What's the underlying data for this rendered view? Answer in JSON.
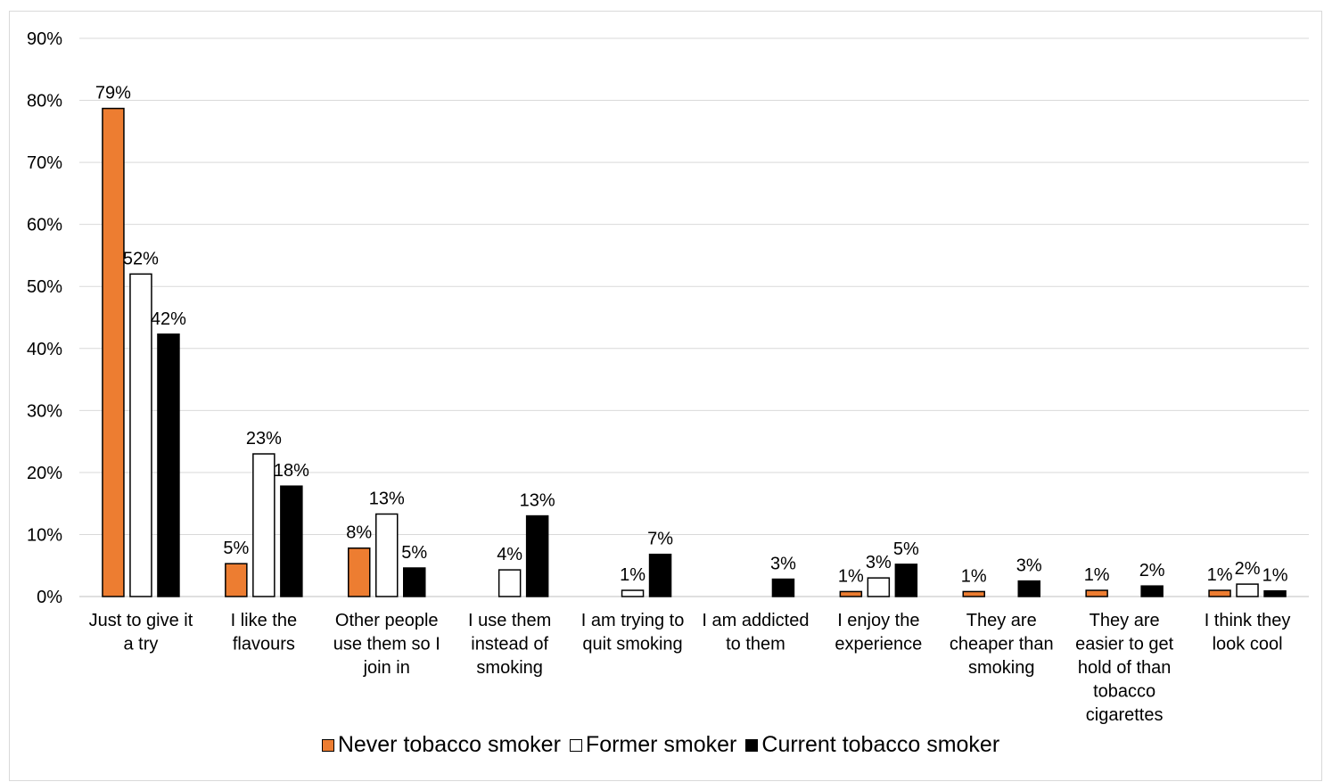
{
  "chart_data": {
    "type": "bar",
    "categories": [
      [
        "Just to give it",
        "a try"
      ],
      [
        "I like the",
        "flavours"
      ],
      [
        "Other people",
        "use them so I",
        "join in"
      ],
      [
        "I use them",
        "instead of",
        "smoking"
      ],
      [
        "I am trying to",
        "quit smoking"
      ],
      [
        "I am addicted",
        "to them"
      ],
      [
        "I enjoy the",
        "experience"
      ],
      [
        "They are",
        "cheaper than",
        "smoking"
      ],
      [
        "They are",
        "easier to get",
        "hold of than",
        "tobacco",
        "cigarettes"
      ],
      [
        "I think they",
        "look cool"
      ]
    ],
    "series": [
      {
        "name": "Never tobacco smoker",
        "color": "#ED7D31",
        "values": [
          78.7,
          5.3,
          7.8,
          0,
          0,
          0,
          0.8,
          0.8,
          1.0,
          1.0
        ],
        "labels": [
          "79%",
          "5%",
          "8%",
          "",
          "",
          "",
          "1%",
          "1%",
          "1%",
          "1%"
        ]
      },
      {
        "name": "Former smoker",
        "color": "#FFFFFF",
        "values": [
          52.0,
          23.0,
          13.3,
          4.3,
          1.0,
          0,
          3.0,
          0,
          0,
          2.0
        ],
        "labels": [
          "52%",
          "23%",
          "13%",
          "4%",
          "1%",
          "",
          "3%",
          "",
          "",
          "2%"
        ]
      },
      {
        "name": "Current tobacco smoker",
        "color": "#000000",
        "values": [
          42.3,
          17.8,
          4.6,
          13.0,
          6.8,
          2.8,
          5.2,
          2.5,
          1.7,
          0.9
        ],
        "labels": [
          "42%",
          "18%",
          "5%",
          "13%",
          "7%",
          "3%",
          "5%",
          "3%",
          "2%",
          "1%"
        ]
      }
    ],
    "yticks": [
      "0%",
      "10%",
      "20%",
      "30%",
      "40%",
      "50%",
      "60%",
      "70%",
      "80%",
      "90%"
    ],
    "ylim": [
      0,
      90
    ],
    "grid": true,
    "legend_position": "bottom",
    "title": "",
    "xlabel": "",
    "ylabel": ""
  }
}
